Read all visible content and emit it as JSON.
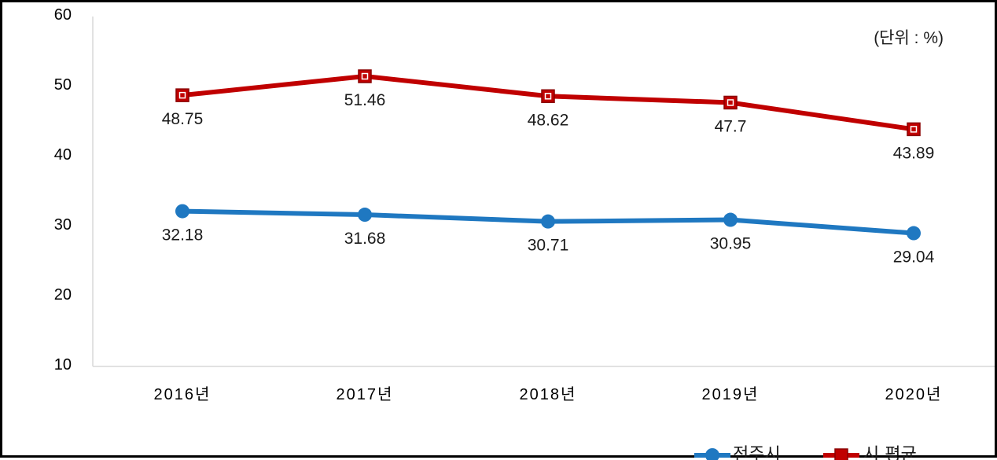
{
  "chart_data": {
    "type": "line",
    "title": "",
    "unit_note": "(단위 : %)",
    "xlabel": "",
    "ylabel": "",
    "categories": [
      "2016년",
      "2017년",
      "2018년",
      "2019년",
      "2020년"
    ],
    "ylim": [
      10,
      60
    ],
    "yticks": [
      "10",
      "20",
      "30",
      "40",
      "50",
      "60"
    ],
    "grid": false,
    "legend_position": "bottom-right",
    "series": [
      {
        "name": "전주시",
        "values": [
          32.18,
          31.68,
          30.71,
          30.95,
          29.04
        ],
        "labels": [
          "32.18",
          "31.68",
          "30.71",
          "30.95",
          "29.04"
        ],
        "color": "#1F78C1",
        "marker": "circle"
      },
      {
        "name": "시 평균",
        "values": [
          48.75,
          51.46,
          48.62,
          47.7,
          43.89
        ],
        "labels": [
          "48.75",
          "51.46",
          "48.62",
          "47.7",
          "43.89"
        ],
        "color": "#C00000",
        "marker": "square"
      }
    ]
  }
}
